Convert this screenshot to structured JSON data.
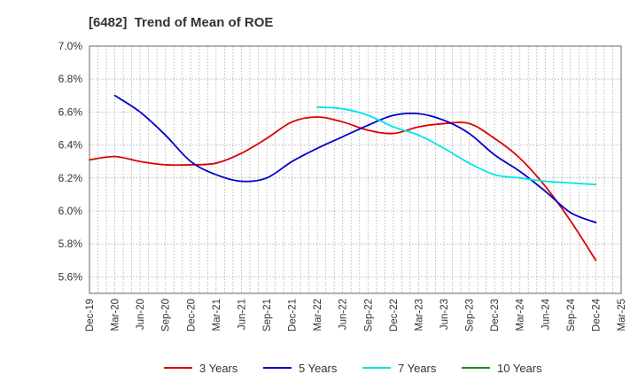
{
  "title": "[6482]  Trend of Mean of ROE",
  "chart_data": {
    "type": "line",
    "title": "[6482]  Trend of Mean of ROE",
    "xlabel": "",
    "ylabel": "",
    "x_ticks": [
      "Dec-19",
      "Mar-20",
      "Jun-20",
      "Sep-20",
      "Dec-20",
      "Mar-21",
      "Jun-21",
      "Sep-21",
      "Dec-21",
      "Mar-22",
      "Jun-22",
      "Sep-22",
      "Dec-22",
      "Mar-23",
      "Jun-23",
      "Sep-23",
      "Dec-23",
      "Mar-24",
      "Jun-24",
      "Sep-24",
      "Dec-24",
      "Mar-25"
    ],
    "y_ticks": [
      "5.6%",
      "5.8%",
      "6.0%",
      "6.2%",
      "6.4%",
      "6.6%",
      "6.8%",
      "7.0%"
    ],
    "ylim": [
      5.5,
      7.0
    ],
    "grid": true,
    "legend_position": "bottom",
    "series": [
      {
        "name": "3 Years",
        "color": "#dd0000",
        "points": [
          [
            "Dec-19",
            6.31
          ],
          [
            "Mar-20",
            6.33
          ],
          [
            "Jun-20",
            6.3
          ],
          [
            "Sep-20",
            6.28
          ],
          [
            "Dec-20",
            6.28
          ],
          [
            "Mar-21",
            6.29
          ],
          [
            "Jun-21",
            6.35
          ],
          [
            "Sep-21",
            6.44
          ],
          [
            "Dec-21",
            6.54
          ],
          [
            "Mar-22",
            6.57
          ],
          [
            "Jun-22",
            6.54
          ],
          [
            "Sep-22",
            6.49
          ],
          [
            "Dec-22",
            6.47
          ],
          [
            "Mar-23",
            6.51
          ],
          [
            "Jun-23",
            6.53
          ],
          [
            "Sep-23",
            6.53
          ],
          [
            "Dec-23",
            6.44
          ],
          [
            "Mar-24",
            6.32
          ],
          [
            "Jun-24",
            6.15
          ],
          [
            "Sep-24",
            5.94
          ],
          [
            "Dec-24",
            5.7
          ]
        ]
      },
      {
        "name": "5 Years",
        "color": "#0000cc",
        "points": [
          [
            "Mar-20",
            6.7
          ],
          [
            "Jun-20",
            6.6
          ],
          [
            "Sep-20",
            6.46
          ],
          [
            "Dec-20",
            6.3
          ],
          [
            "Mar-21",
            6.22
          ],
          [
            "Jun-21",
            6.18
          ],
          [
            "Sep-21",
            6.2
          ],
          [
            "Dec-21",
            6.3
          ],
          [
            "Mar-22",
            6.38
          ],
          [
            "Jun-22",
            6.45
          ],
          [
            "Sep-22",
            6.52
          ],
          [
            "Dec-22",
            6.58
          ],
          [
            "Mar-23",
            6.59
          ],
          [
            "Jun-23",
            6.55
          ],
          [
            "Sep-23",
            6.47
          ],
          [
            "Dec-23",
            6.34
          ],
          [
            "Mar-24",
            6.24
          ],
          [
            "Jun-24",
            6.12
          ],
          [
            "Sep-24",
            5.99
          ],
          [
            "Dec-24",
            5.93
          ]
        ]
      },
      {
        "name": "7 Years",
        "color": "#00e5e5",
        "points": [
          [
            "Mar-22",
            6.63
          ],
          [
            "Jun-22",
            6.62
          ],
          [
            "Sep-22",
            6.58
          ],
          [
            "Dec-22",
            6.51
          ],
          [
            "Mar-23",
            6.46
          ],
          [
            "Jun-23",
            6.38
          ],
          [
            "Sep-23",
            6.29
          ],
          [
            "Dec-23",
            6.22
          ],
          [
            "Mar-24",
            6.2
          ],
          [
            "Jun-24",
            6.18
          ],
          [
            "Sep-24",
            6.17
          ],
          [
            "Dec-24",
            6.16
          ]
        ]
      },
      {
        "name": "10 Years",
        "color": "#228b22",
        "points": []
      }
    ]
  }
}
